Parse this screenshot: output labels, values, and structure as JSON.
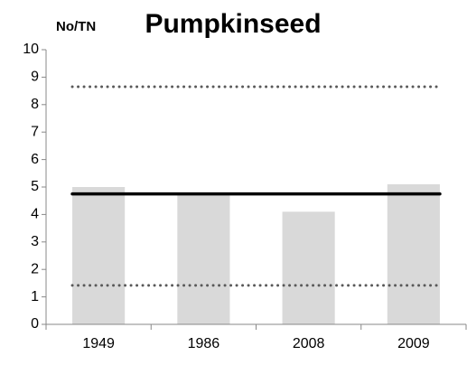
{
  "chart_data": {
    "type": "bar",
    "title": "Pumpkinseed",
    "y_label": "No/TN",
    "categories": [
      "1949",
      "1986",
      "2008",
      "2009"
    ],
    "values": [
      5.0,
      4.7,
      4.1,
      5.1
    ],
    "color": "#d9d9d9",
    "reference_lines": [
      {
        "value": 4.75,
        "style": "solid",
        "color": "#000000"
      },
      {
        "value": 8.65,
        "style": "dotted",
        "color": "#595959"
      },
      {
        "value": 1.42,
        "style": "dotted",
        "color": "#595959"
      }
    ],
    "ylim": [
      0,
      10
    ],
    "yticks": [
      0,
      1,
      2,
      3,
      4,
      5,
      6,
      7,
      8,
      9,
      10
    ],
    "grid": false
  }
}
